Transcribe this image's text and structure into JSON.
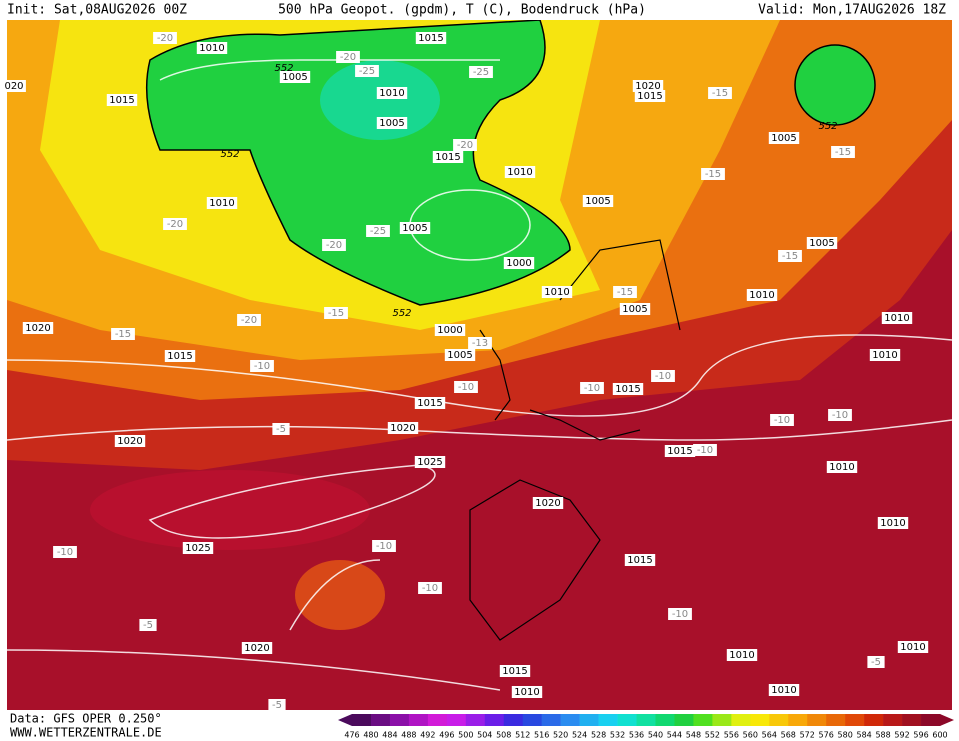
{
  "header": {
    "init": "Init: Sat,08AUG2026 00Z",
    "title": "500 hPa Geopot. (gpdm), T (C), Bodendruck (hPa)",
    "valid": "Valid: Mon,17AUG2026 18Z"
  },
  "footer": {
    "data": "Data: GFS OPER 0.250°",
    "site": "WWW.WETTERZENTRALE.DE"
  },
  "colorbar": {
    "labels": [
      476,
      480,
      484,
      488,
      492,
      496,
      500,
      504,
      508,
      512,
      516,
      520,
      524,
      528,
      532,
      536,
      540,
      544,
      548,
      552,
      556,
      560,
      564,
      568,
      572,
      576,
      580,
      584,
      588,
      592,
      596,
      600
    ],
    "colors": [
      "#4b0a5c",
      "#6a0d82",
      "#8b10a8",
      "#b014c4",
      "#d21ad8",
      "#c81de8",
      "#9a1ee8",
      "#6a1ee8",
      "#3a2ae0",
      "#2848e0",
      "#2a6ae8",
      "#2a8cf0",
      "#20b0f0",
      "#18d0f0",
      "#10e0d0",
      "#10e0a0",
      "#10d870",
      "#20d040",
      "#50e020",
      "#9ae818",
      "#e0f010",
      "#f8e808",
      "#f8c808",
      "#f8a808",
      "#f08808",
      "#e86808",
      "#e04808",
      "#d02808",
      "#b81818",
      "#a01020",
      "#8c0828"
    ]
  },
  "map": {
    "pressure_labels": [
      "1010",
      "1015",
      "1005",
      "1010",
      "1005",
      "1015",
      "1010",
      "1015",
      "1010",
      "1005",
      "1000",
      "1010",
      "1005",
      "1000",
      "1005",
      "1015",
      "1020",
      "1015",
      "1020",
      "1020",
      "1025",
      "1025",
      "1020",
      "1015",
      "1015",
      "1015",
      "1010",
      "1010",
      "1010",
      "1010",
      "1010",
      "1010",
      "1010",
      "1010",
      "1010",
      "1015",
      "1020",
      "1020",
      "1015",
      "1005",
      "1005",
      "1005",
      "020"
    ],
    "temperature_labels": [
      "-20",
      "-20",
      "-25",
      "-25",
      "-20",
      "-20",
      "-25",
      "-20",
      "-15",
      "-15",
      "-15",
      "-15",
      "-15",
      "-15",
      "-20",
      "-15",
      "-13",
      "-10",
      "-10",
      "-10",
      "-10",
      "-10",
      "-10",
      "-10",
      "-5",
      "-10",
      "-10",
      "-10",
      "-5",
      "-10",
      "-5",
      "-5"
    ],
    "height_labels": [
      "552",
      "552",
      "552",
      "552"
    ]
  }
}
